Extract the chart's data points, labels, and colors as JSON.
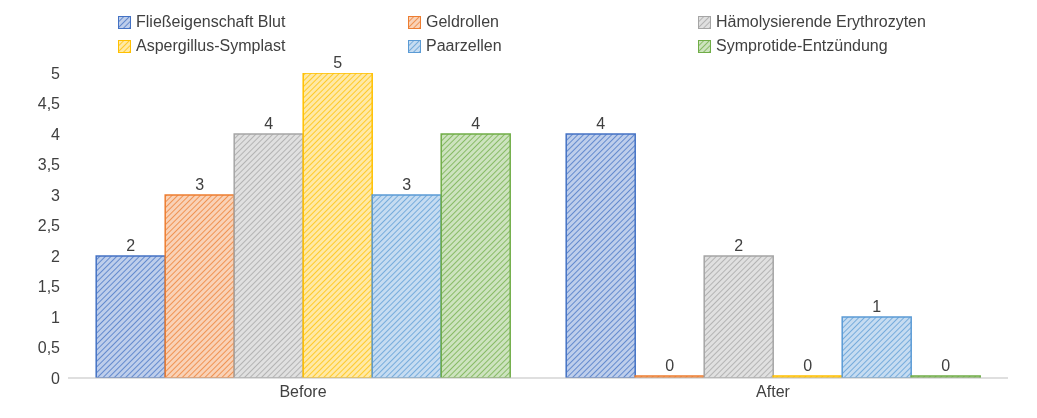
{
  "chart_data": {
    "type": "bar",
    "categories": [
      "Before",
      "After"
    ],
    "series": [
      {
        "name": "Fließeigenschaft Blut",
        "color": "#4472c4",
        "values": [
          2,
          4
        ]
      },
      {
        "name": "Geldrollen",
        "color": "#ed7d31",
        "values": [
          3,
          0
        ]
      },
      {
        "name": "Hämolysierende Erythrozyten",
        "color": "#a5a5a5",
        "values": [
          4,
          2
        ]
      },
      {
        "name": "Aspergillus-Symplast",
        "color": "#ffc000",
        "values": [
          5,
          0
        ]
      },
      {
        "name": "Paarzellen",
        "color": "#5b9bd5",
        "values": [
          3,
          1
        ]
      },
      {
        "name": "Symprotide-Entzündung",
        "color": "#70ad47",
        "values": [
          4,
          0
        ]
      }
    ],
    "ylim": [
      0,
      5
    ],
    "yticks": [
      0,
      {
        "value": 0.5,
        "label": "0,5"
      },
      1,
      {
        "value": 1.5,
        "label": "1,5"
      },
      2,
      {
        "value": 2.5,
        "label": "2,5"
      },
      3,
      {
        "value": 3.5,
        "label": "3,5"
      },
      4,
      {
        "value": 4.5,
        "label": "4,5"
      },
      5
    ],
    "grid": false,
    "legend": "top",
    "data_labels": true
  }
}
